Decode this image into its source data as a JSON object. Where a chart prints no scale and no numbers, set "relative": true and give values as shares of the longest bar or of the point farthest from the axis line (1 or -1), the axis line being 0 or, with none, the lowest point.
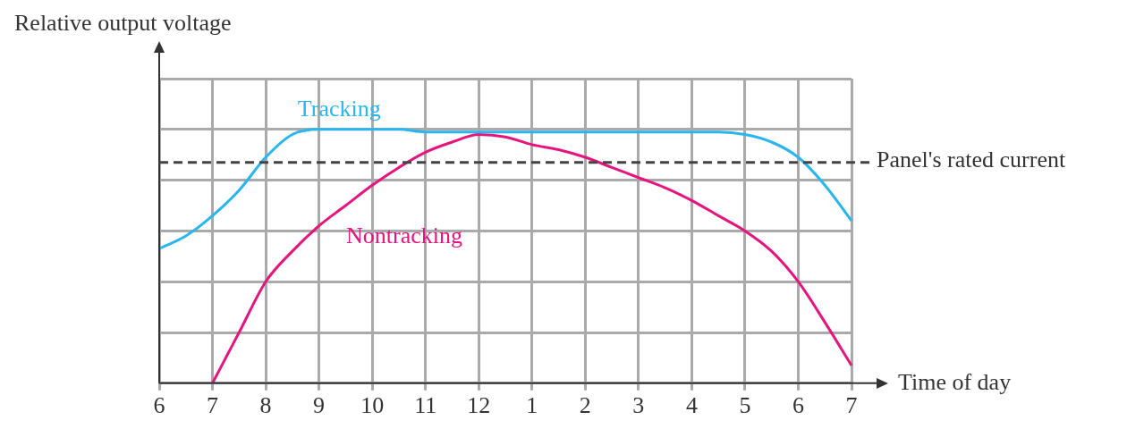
{
  "chart_data": {
    "type": "line",
    "xlabel": "Time of day",
    "ylabel": "Relative output voltage",
    "relative": true,
    "grid": true,
    "marker": "none",
    "line_style": "solid",
    "categories": [
      "6",
      null,
      "7",
      null,
      "8",
      null,
      "9",
      null,
      "10",
      null,
      "11",
      null,
      "12",
      null,
      "1",
      null,
      "2",
      null,
      "3",
      null,
      "4",
      null,
      "5",
      null,
      "6",
      null,
      "7"
    ],
    "series": [
      {
        "name": "Tracking",
        "color": "#29b6f0",
        "values": [
          0.53,
          0.58,
          0.66,
          0.76,
          0.89,
          0.98,
          1.0,
          1.0,
          1.0,
          1.0,
          0.99,
          0.99,
          0.99,
          0.99,
          0.99,
          0.99,
          0.99,
          0.99,
          0.99,
          0.99,
          0.99,
          0.99,
          0.98,
          0.95,
          0.89,
          0.78,
          0.64
        ]
      },
      {
        "name": "Nontracking",
        "color": "#e6157e",
        "values": [
          null,
          null,
          0,
          0.2,
          0.4,
          0.52,
          0.62,
          0.7,
          0.78,
          0.85,
          0.91,
          0.95,
          0.98,
          0.97,
          0.94,
          0.92,
          0.89,
          0.85,
          0.81,
          0.77,
          0.72,
          0.66,
          0.6,
          0.52,
          0.4,
          0.24,
          0.07
        ]
      }
    ],
    "ref_lines": [
      {
        "axis": "y",
        "value": 0.87,
        "label": "Panel's rated current",
        "line_style": "dashed",
        "color": "#444444"
      }
    ]
  }
}
